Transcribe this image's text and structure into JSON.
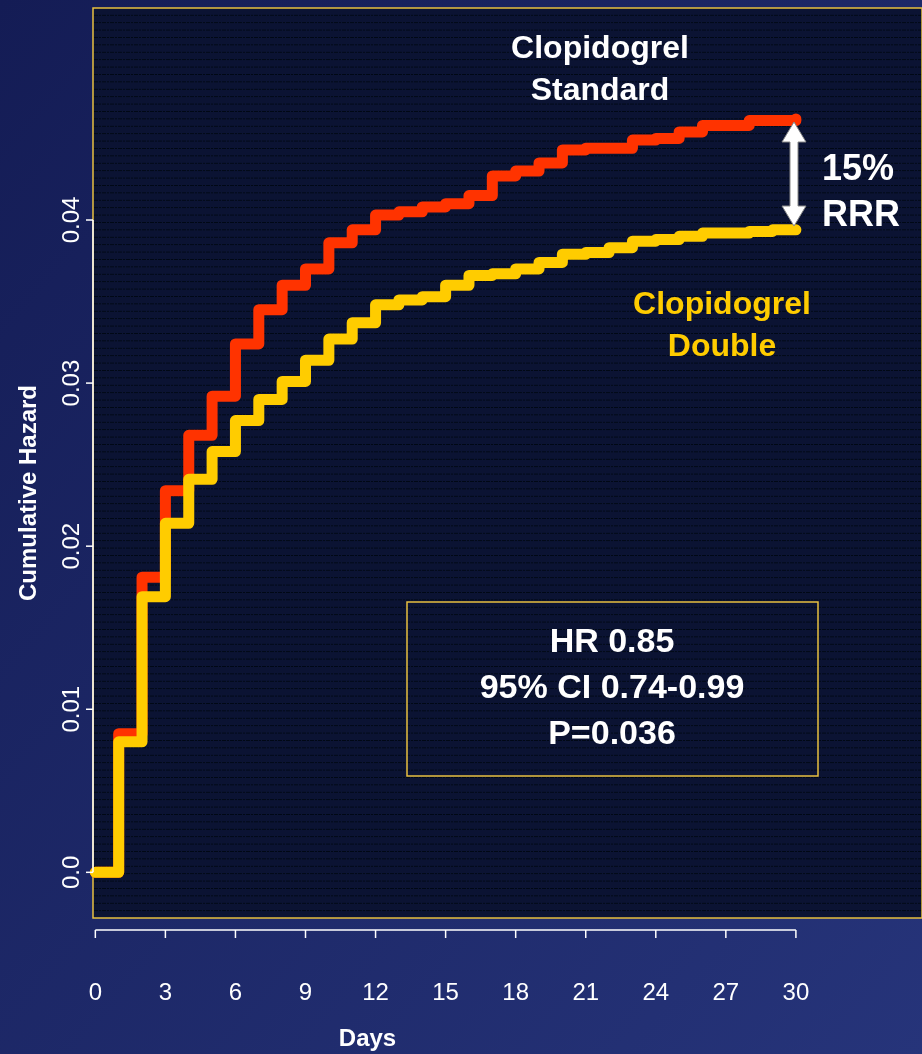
{
  "chart_data": {
    "type": "step",
    "xlabel": "Days",
    "ylabel": "Cumulative Hazard",
    "x": [
      0,
      1,
      2,
      3,
      4,
      5,
      6,
      7,
      8,
      9,
      10,
      11,
      12,
      13,
      14,
      15,
      16,
      17,
      18,
      19,
      20,
      21,
      22,
      23,
      24,
      25,
      26,
      27,
      28,
      29,
      30
    ],
    "series": [
      {
        "name": "Clopidogrel Standard",
        "color": "#ff3300",
        "values": [
          0,
          0.0085,
          0.0181,
          0.0234,
          0.0268,
          0.0292,
          0.0324,
          0.0345,
          0.036,
          0.037,
          0.0386,
          0.0394,
          0.0403,
          0.0405,
          0.0408,
          0.041,
          0.0415,
          0.0427,
          0.043,
          0.0435,
          0.0443,
          0.0444,
          0.0444,
          0.0449,
          0.045,
          0.0454,
          0.0458,
          0.0458,
          0.0461,
          0.0461,
          0.0462
        ]
      },
      {
        "name": "Clopidogrel Double",
        "color": "#ffcc00",
        "values": [
          0,
          0.008,
          0.0169,
          0.0214,
          0.0241,
          0.0258,
          0.0277,
          0.029,
          0.0301,
          0.0314,
          0.0327,
          0.0337,
          0.0348,
          0.0351,
          0.0353,
          0.036,
          0.0366,
          0.0367,
          0.037,
          0.0374,
          0.0379,
          0.038,
          0.0383,
          0.0387,
          0.0388,
          0.039,
          0.0392,
          0.0392,
          0.0393,
          0.0394,
          0.0394
        ]
      }
    ],
    "xlim": [
      -0.1,
      35.4
    ],
    "xticks": [
      0,
      3,
      6,
      9,
      12,
      15,
      18,
      21,
      24,
      27,
      30
    ],
    "ylim": [
      -0.0028,
      0.053
    ],
    "yticks": [
      {
        "value": 0,
        "label": "0.0"
      },
      0.01,
      0.02,
      0.03,
      0.04
    ],
    "annotations": [
      "15% RRR",
      "HR 0.85",
      "95% CI 0.74-0.99",
      "P=0.036"
    ]
  }
}
